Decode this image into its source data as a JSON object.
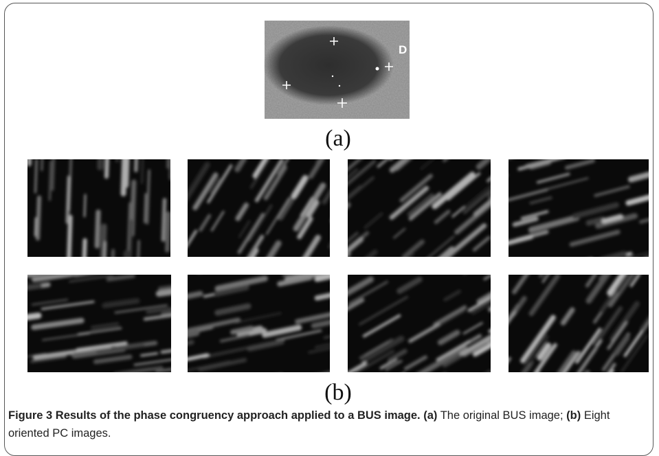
{
  "figure": {
    "image_marker": "D",
    "panel_a_label": "(a)",
    "panel_b_label": "(b)",
    "caption": {
      "label": "Figure 3",
      "title": "Results of the phase congruency approach applied to a BUS image.",
      "parts": [
        {
          "label": "(a)",
          "text": "The original BUS image;"
        },
        {
          "label": "(b)",
          "text": "Eight oriented PC images."
        }
      ]
    }
  }
}
